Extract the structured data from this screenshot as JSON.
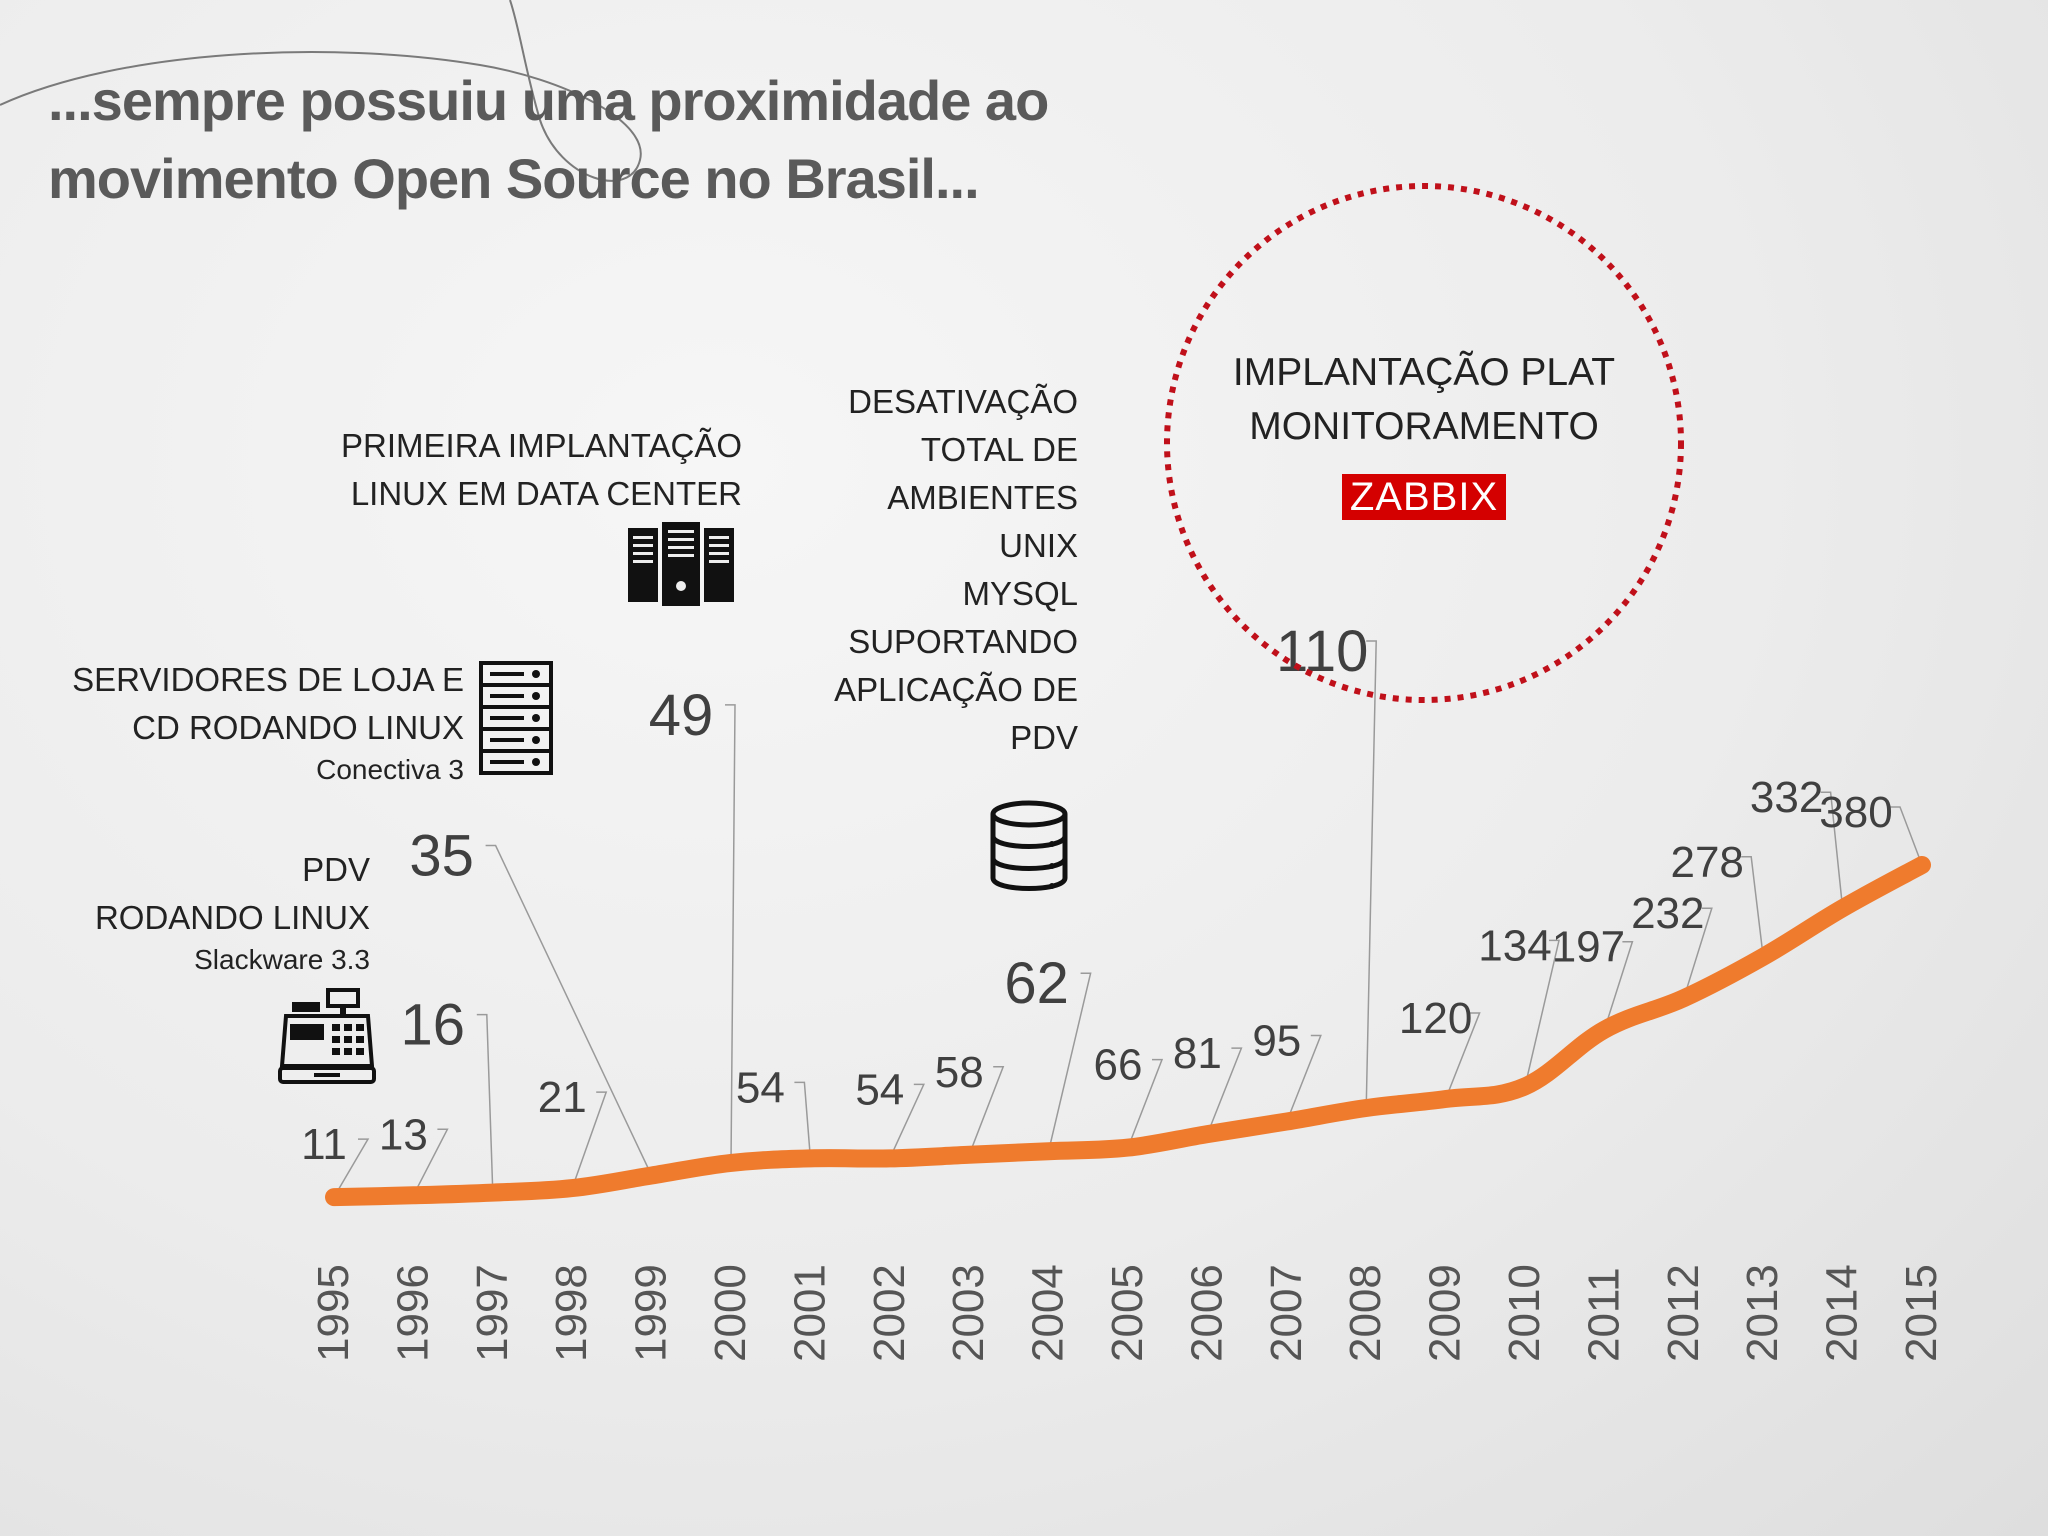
{
  "title": {
    "line1": "...sempre possuiu uma proximidade ao",
    "line2": "movimento Open Source no Brasil..."
  },
  "annotations": {
    "pdv": {
      "line1": "PDV",
      "line2": "RODANDO LINUX",
      "sub": "Slackware 3.3",
      "icon": "cash-register-icon"
    },
    "servidores": {
      "line1": "SERVIDORES DE LOJA E",
      "line2": "CD RODANDO LINUX",
      "sub": "Conectiva 3",
      "icon": "server-rack-icon"
    },
    "datacenter": {
      "line1": "PRIMEIRA IMPLANTAÇÃO",
      "line2": "LINUX EM DATA CENTER",
      "icon": "server-tower-icon"
    },
    "unix": {
      "lines": [
        "DESATIVAÇÃO",
        "TOTAL DE",
        "AMBIENTES",
        "UNIX",
        "MYSQL",
        "SUPORTANDO",
        "APLICAÇÃO DE",
        "PDV"
      ],
      "icon": "database-icon"
    },
    "zabbix": {
      "line1": "IMPLANTAÇÃO PLAT",
      "line2": "MONITORAMENTO",
      "logo": "ZABBIX"
    }
  },
  "colors": {
    "line": "#ef7b2d",
    "title": "#5a5a5a",
    "label": "#404040",
    "leader": "#9a9a9a",
    "circle": "#c0101a",
    "zabbix_bg": "#d40000"
  },
  "chart_data": {
    "type": "line",
    "categories": [
      "1995",
      "1996",
      "1997",
      "1998",
      "1999",
      "2000",
      "2001",
      "2002",
      "2003",
      "2004",
      "2005",
      "2006",
      "2007",
      "2008",
      "2009",
      "2010",
      "2011",
      "2012",
      "2013",
      "2014",
      "2015"
    ],
    "series": [
      {
        "values": [
          11,
          13,
          16,
          21,
          35,
          49,
          54,
          54,
          58,
          62,
          66,
          81,
          95,
          110,
          120,
          134,
          197,
          232,
          278,
          332,
          380
        ]
      }
    ],
    "data_labels": [
      "11",
      "13",
      "16",
      "21",
      "35",
      "49",
      "54",
      "54",
      "58",
      "62",
      "66",
      "81",
      "95",
      "110",
      "120",
      "134",
      "197",
      "232",
      "278",
      "332",
      "380"
    ],
    "ylim": [
      0,
      380
    ],
    "grid": false,
    "legend": "none",
    "xlabel": "",
    "ylabel": ""
  }
}
